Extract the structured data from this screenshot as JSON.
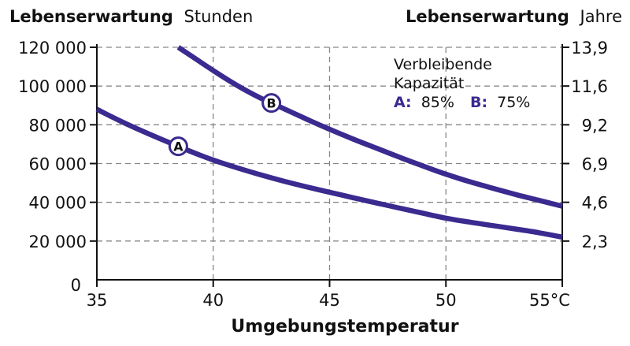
{
  "chart_data": {
    "type": "line",
    "title_left": {
      "bold": "Lebenserwartung",
      "normal": "Stunden"
    },
    "title_right": {
      "bold": "Lebenserwartung",
      "normal": "Jahre"
    },
    "xlabel": "Umgebungstemperatur",
    "xlim": [
      35,
      55
    ],
    "ylim": [
      0,
      120000
    ],
    "x_ticks": [
      {
        "value": 35,
        "label": "35"
      },
      {
        "value": 40,
        "label": "40"
      },
      {
        "value": 45,
        "label": "45"
      },
      {
        "value": 50,
        "label": "50"
      },
      {
        "value": 55,
        "label": "55°C"
      }
    ],
    "y_ticks_left": [
      {
        "value": 0,
        "label": "0"
      },
      {
        "value": 20000,
        "label": "20 000"
      },
      {
        "value": 40000,
        "label": "40 000"
      },
      {
        "value": 60000,
        "label": "60 000"
      },
      {
        "value": 80000,
        "label": "80 000"
      },
      {
        "value": 100000,
        "label": "100 000"
      },
      {
        "value": 120000,
        "label": "120 000"
      }
    ],
    "y_ticks_right": [
      {
        "value": 20000,
        "label": "2,3"
      },
      {
        "value": 40000,
        "label": "4,6"
      },
      {
        "value": 60000,
        "label": "6,9"
      },
      {
        "value": 80000,
        "label": "9,2"
      },
      {
        "value": 100000,
        "label": "11,6"
      },
      {
        "value": 120000,
        "label": "13,9"
      }
    ],
    "grid": true,
    "series": [
      {
        "name": "A",
        "marker_at": 38.5,
        "x": [
          35,
          36,
          37,
          38,
          39,
          40,
          41,
          42,
          43,
          44,
          45,
          46,
          47,
          48,
          49,
          50,
          51,
          52,
          53,
          54,
          55
        ],
        "y": [
          88000,
          82000,
          76500,
          71400,
          66400,
          61800,
          57900,
          54300,
          51000,
          48000,
          45200,
          42400,
          39700,
          37000,
          34400,
          31800,
          29800,
          28000,
          26200,
          24300,
          22000
        ]
      },
      {
        "name": "B",
        "marker_at": 42.5,
        "x": [
          38.5,
          39,
          40,
          41,
          42,
          43,
          44,
          45,
          46,
          47,
          48,
          49,
          50,
          51,
          52,
          53,
          54,
          55
        ],
        "y": [
          120000,
          116000,
          108000,
          100500,
          94000,
          88500,
          83000,
          77700,
          72700,
          68000,
          63300,
          58800,
          54500,
          50700,
          47300,
          44000,
          41000,
          38000
        ]
      }
    ],
    "legend": {
      "heading_line1": "Verbleibende",
      "heading_line2": "Kapazität",
      "items": [
        {
          "key": "A:",
          "value": "85%"
        },
        {
          "key": "B:",
          "value": "75%"
        }
      ],
      "placement": "top-right"
    },
    "colors": {
      "series": "#3b2a8f",
      "axis": "#111111",
      "grid": "#888888"
    }
  }
}
